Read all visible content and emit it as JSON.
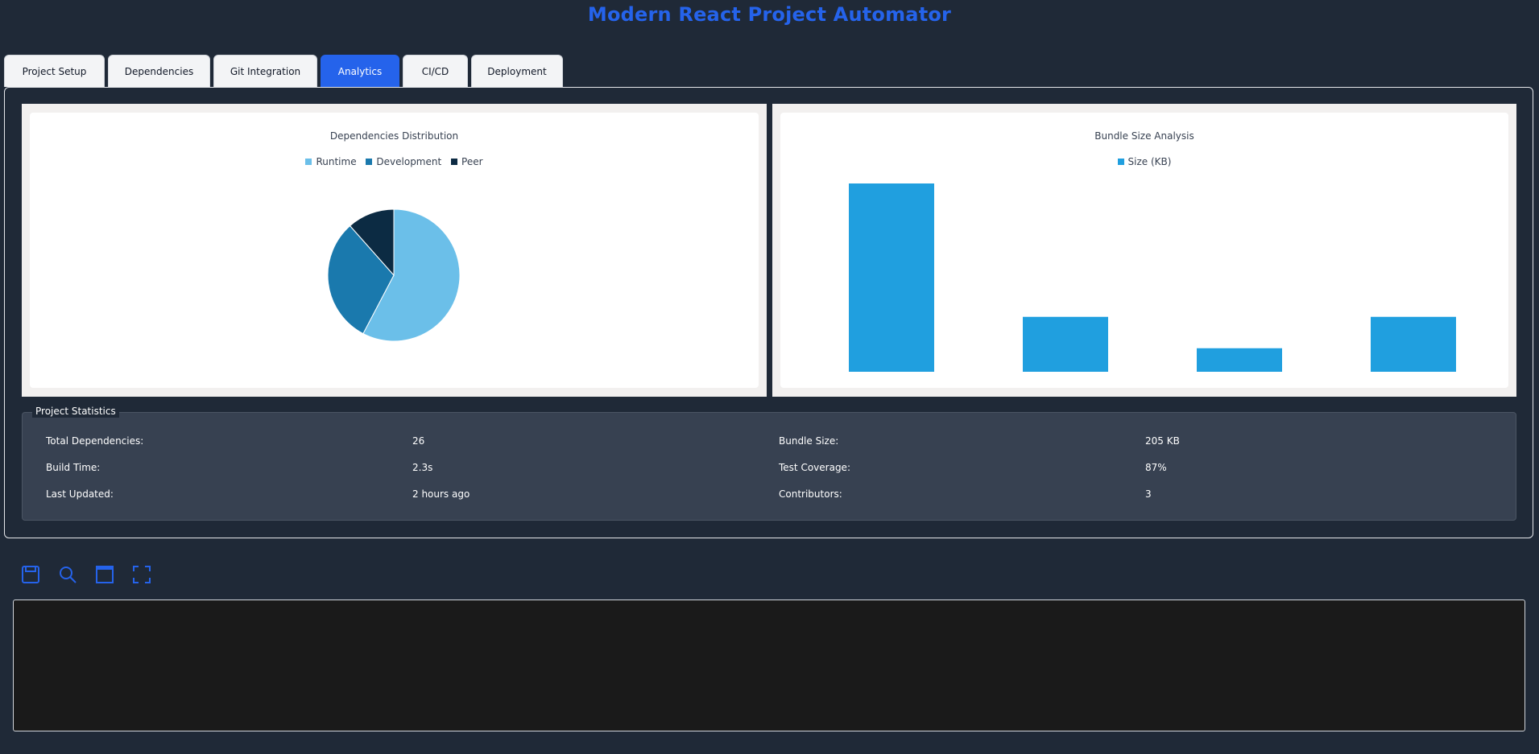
{
  "app": {
    "title": "Modern React Project Automator"
  },
  "tabs": [
    {
      "label": "Project Setup",
      "active": false
    },
    {
      "label": "Dependencies",
      "active": false
    },
    {
      "label": "Git Integration",
      "active": false
    },
    {
      "label": "Analytics",
      "active": true
    },
    {
      "label": "CI/CD",
      "active": false
    },
    {
      "label": "Deployment",
      "active": false
    }
  ],
  "colors": {
    "accent": "#2563eb",
    "runtime": "#6bbfe9",
    "development": "#1a79ad",
    "peer": "#0c2b43",
    "bundle": "#209fdf"
  },
  "chart_data": [
    {
      "type": "pie",
      "title": "Dependencies Distribution",
      "categories": [
        "Runtime",
        "Development",
        "Peer"
      ],
      "values": [
        15,
        8,
        3
      ],
      "legend_position": "top"
    },
    {
      "type": "bar",
      "title": "Bundle Size Analysis",
      "series": [
        {
          "name": "Size (KB)",
          "values": [
            120,
            35,
            15,
            35
          ]
        }
      ],
      "categories": [
        "",
        "",
        "",
        ""
      ],
      "ylim": [
        0,
        120
      ],
      "grid": false,
      "legend_position": "top"
    }
  ],
  "stats": {
    "title": "Project Statistics",
    "items": [
      {
        "label": "Total Dependencies:",
        "value": "26"
      },
      {
        "label": "Bundle Size:",
        "value": "205 KB"
      },
      {
        "label": "Build Time:",
        "value": "2.3s"
      },
      {
        "label": "Test Coverage:",
        "value": "87%"
      },
      {
        "label": "Last Updated:",
        "value": "2 hours ago"
      },
      {
        "label": "Contributors:",
        "value": "3"
      }
    ]
  },
  "toolbar": {
    "buttons": [
      {
        "icon": "save-icon"
      },
      {
        "icon": "search-icon"
      },
      {
        "icon": "window-icon"
      },
      {
        "icon": "fullscreen-icon"
      }
    ]
  },
  "console": {
    "content": ""
  }
}
